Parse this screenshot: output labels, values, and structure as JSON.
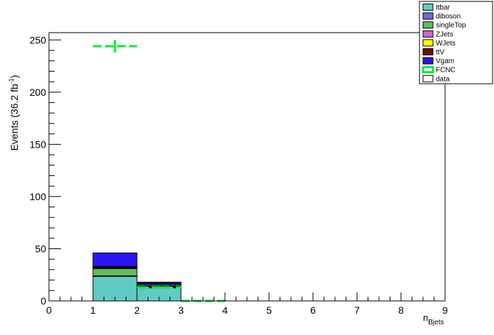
{
  "chart_data": {
    "type": "bar",
    "stacked": true,
    "xlabel_main": "n",
    "xlabel_sub": "Bjets",
    "ylabel_main": "Events (36.2 fb",
    "ylabel_sup": "-1",
    "ylabel_close": ")",
    "xlim": [
      0,
      9
    ],
    "ylim": [
      0,
      257
    ],
    "x_ticks": [
      0,
      1,
      2,
      3,
      4,
      5,
      6,
      7,
      8,
      9
    ],
    "x_tick_labels": [
      "0",
      "1",
      "2",
      "3",
      "4",
      "5",
      "6",
      "7",
      "8",
      "9"
    ],
    "y_ticks": [
      0,
      50,
      100,
      150,
      200,
      250
    ],
    "y_tick_labels": [
      "0",
      "50",
      "100",
      "150",
      "200",
      "250"
    ],
    "bin_edges": [
      0,
      1,
      2,
      3,
      4,
      5,
      6,
      7,
      8,
      9
    ],
    "series": [
      {
        "name": "ttbar",
        "color": "#5fcbc4",
        "values": [
          0,
          23.5,
          14.0,
          0,
          0,
          0,
          0,
          0,
          0
        ]
      },
      {
        "name": "diboson",
        "color": "#6b6bd8",
        "values": [
          0,
          0.5,
          0.3,
          0,
          0,
          0,
          0,
          0,
          0
        ]
      },
      {
        "name": "singleTop",
        "color": "#5fbf5f",
        "values": [
          0,
          7.0,
          1.5,
          0,
          0,
          0,
          0,
          0,
          0
        ]
      },
      {
        "name": "ZJets",
        "color": "#cc66cc",
        "values": [
          0,
          0.5,
          0.2,
          0,
          0,
          0,
          0,
          0,
          0
        ]
      },
      {
        "name": "WJets",
        "color": "#ffff00",
        "values": [
          0,
          0.5,
          0.2,
          0,
          0,
          0,
          0,
          0,
          0
        ]
      },
      {
        "name": "ttV",
        "color": "#6e0d0d",
        "values": [
          0,
          1.0,
          0.3,
          0,
          0,
          0,
          0,
          0,
          0
        ]
      },
      {
        "name": "Vgam",
        "color": "#2a14f0",
        "values": [
          0,
          13.0,
          1.5,
          0,
          0,
          0,
          0,
          0,
          0
        ]
      }
    ],
    "signal": {
      "name": "FCNC",
      "color": "#00ee33",
      "x": [
        1.5,
        2.5,
        3.5
      ],
      "y": [
        244,
        13,
        0
      ],
      "xerr": 0.5,
      "yerr": [
        6,
        1.2,
        0
      ]
    },
    "data_points": {
      "name": "data",
      "x": [
        2.3,
        2.85
      ],
      "y": [
        13.5,
        13.5
      ]
    },
    "legend": {
      "placement": "top-right",
      "entries": [
        {
          "label": "ttbar",
          "color": "#5fcbc4",
          "style": "fill"
        },
        {
          "label": "diboson",
          "color": "#6b6bd8",
          "style": "fill"
        },
        {
          "label": "singleTop",
          "color": "#5fbf5f",
          "style": "fill"
        },
        {
          "label": "ZJets",
          "color": "#cc66cc",
          "style": "fill"
        },
        {
          "label": "WJets",
          "color": "#ffff00",
          "style": "fill"
        },
        {
          "label": "ttV",
          "color": "#6e0d0d",
          "style": "fill"
        },
        {
          "label": "Vgam",
          "color": "#2a14f0",
          "style": "fill"
        },
        {
          "label": "FCNC",
          "color": "#00ee33",
          "style": "line"
        },
        {
          "label": "data",
          "color": "#ffffff",
          "style": "fill"
        }
      ]
    }
  }
}
